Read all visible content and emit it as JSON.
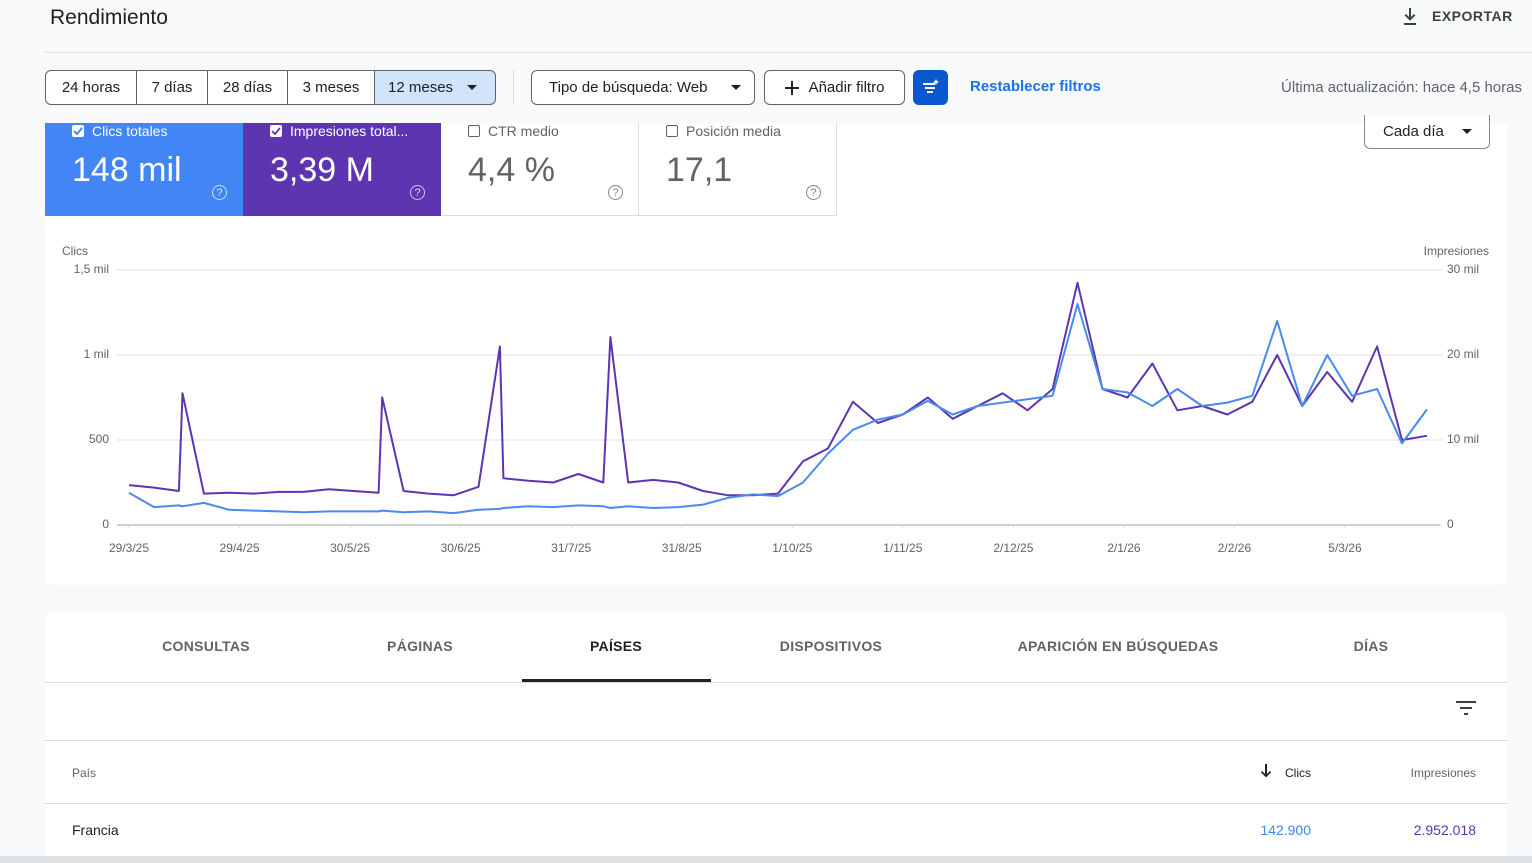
{
  "header": {
    "title": "Rendimiento",
    "export": "EXPORTAR"
  },
  "filters": {
    "ranges": [
      "24 horas",
      "7 días",
      "28 días",
      "3 meses",
      "12 meses"
    ],
    "search_type": "Tipo de búsqueda: Web",
    "add_filter": "Añadir filtro",
    "reset": "Restablecer filtros",
    "updated": "Última actualización: hace 4,5 horas"
  },
  "metrics": [
    {
      "label": "Clics totales",
      "value": "148 mil"
    },
    {
      "label": "Impresiones total...",
      "value": "3,39 M"
    },
    {
      "label": "CTR medio",
      "value": "4,4 %"
    },
    {
      "label": "Posición media",
      "value": "17,1"
    }
  ],
  "granularity": "Cada día",
  "chart_data": {
    "type": "line",
    "x": [
      "29/3/25",
      "5/4/25",
      "12/4/25",
      "13/4/25",
      "19/4/25",
      "26/4/25",
      "3/5/25",
      "10/5/25",
      "17/5/25",
      "24/5/25",
      "31/5/25",
      "7/6/25",
      "8/6/25",
      "14/6/25",
      "21/6/25",
      "28/6/25",
      "5/7/25",
      "11/7/25",
      "12/7/25",
      "19/7/25",
      "26/7/25",
      "2/8/25",
      "9/8/25",
      "11/8/25",
      "16/8/25",
      "23/8/25",
      "30/8/25",
      "6/9/25",
      "13/9/25",
      "20/9/25",
      "27/9/25",
      "4/10/25",
      "11/10/25",
      "18/10/25",
      "25/10/25",
      "1/11/25",
      "8/11/25",
      "15/11/25",
      "22/11/25",
      "29/11/25",
      "6/12/25",
      "13/12/25",
      "20/12/25",
      "27/12/25",
      "3/1/26",
      "10/1/26",
      "17/1/26",
      "24/1/26",
      "31/1/26",
      "7/2/26",
      "14/2/26",
      "21/2/26",
      "28/2/26",
      "7/3/26",
      "14/3/26",
      "21/3/26",
      "28/3/26"
    ],
    "series": [
      {
        "name": "Clics",
        "color": "#4a8af0",
        "values": [
          190,
          105,
          115,
          110,
          130,
          90,
          85,
          80,
          75,
          80,
          80,
          80,
          85,
          75,
          80,
          70,
          90,
          95,
          100,
          110,
          105,
          115,
          110,
          100,
          110,
          100,
          105,
          120,
          160,
          180,
          170,
          250,
          420,
          560,
          620,
          650,
          730,
          650,
          700,
          720,
          740,
          760,
          1300,
          800,
          780,
          700,
          800,
          700,
          720,
          760,
          1200,
          700,
          1000,
          760,
          800,
          480,
          680
        ]
      },
      {
        "name": "Impresiones",
        "color": "#5e35b1",
        "axis": "y2",
        "values": [
          4700,
          4400,
          4000,
          15500,
          3700,
          3800,
          3700,
          3900,
          3900,
          4200,
          4000,
          3800,
          15000,
          4000,
          3700,
          3500,
          4500,
          21000,
          5500,
          5200,
          5000,
          6000,
          5000,
          22100,
          5000,
          5300,
          5000,
          4000,
          3500,
          3500,
          3700,
          7500,
          9000,
          14500,
          12000,
          13000,
          15000,
          12500,
          14000,
          15500,
          13500,
          16000,
          28500,
          16000,
          15000,
          19000,
          13500,
          14000,
          13000,
          14500,
          20000,
          14000,
          18000,
          14500,
          21000,
          10000,
          10500
        ]
      }
    ],
    "xlim": [
      "29/3/25",
      "28/3/26"
    ],
    "xticks": [
      "29/3/25",
      "29/4/25",
      "30/5/25",
      "30/6/25",
      "31/7/25",
      "31/8/25",
      "1/10/25",
      "1/11/25",
      "2/12/25",
      "2/1/26",
      "2/2/26",
      "5/3/26"
    ],
    "ylim": [
      0,
      1500
    ],
    "yticks": [
      0,
      500,
      {
        "value": 1000,
        "label": "1 mil"
      },
      {
        "value": 1500,
        "label": "1,5 mil"
      }
    ],
    "y2lim": [
      0,
      30000
    ],
    "y2ticks": [
      0,
      {
        "value": 10000,
        "label": "10 mil"
      },
      {
        "value": 20000,
        "label": "20 mil"
      },
      {
        "value": 30000,
        "label": "30 mil"
      }
    ],
    "grid": true
  },
  "tabs": [
    "CONSULTAS",
    "PÁGINAS",
    "PAÍSES",
    "DISPOSITIVOS",
    "APARICIÓN EN BÚSQUEDAS",
    "DÍAS"
  ],
  "table": {
    "columns": [
      "País",
      "Clics",
      "Impresiones"
    ],
    "rows": [
      [
        "Francia",
        "142.900",
        "2.952.018"
      ]
    ]
  }
}
